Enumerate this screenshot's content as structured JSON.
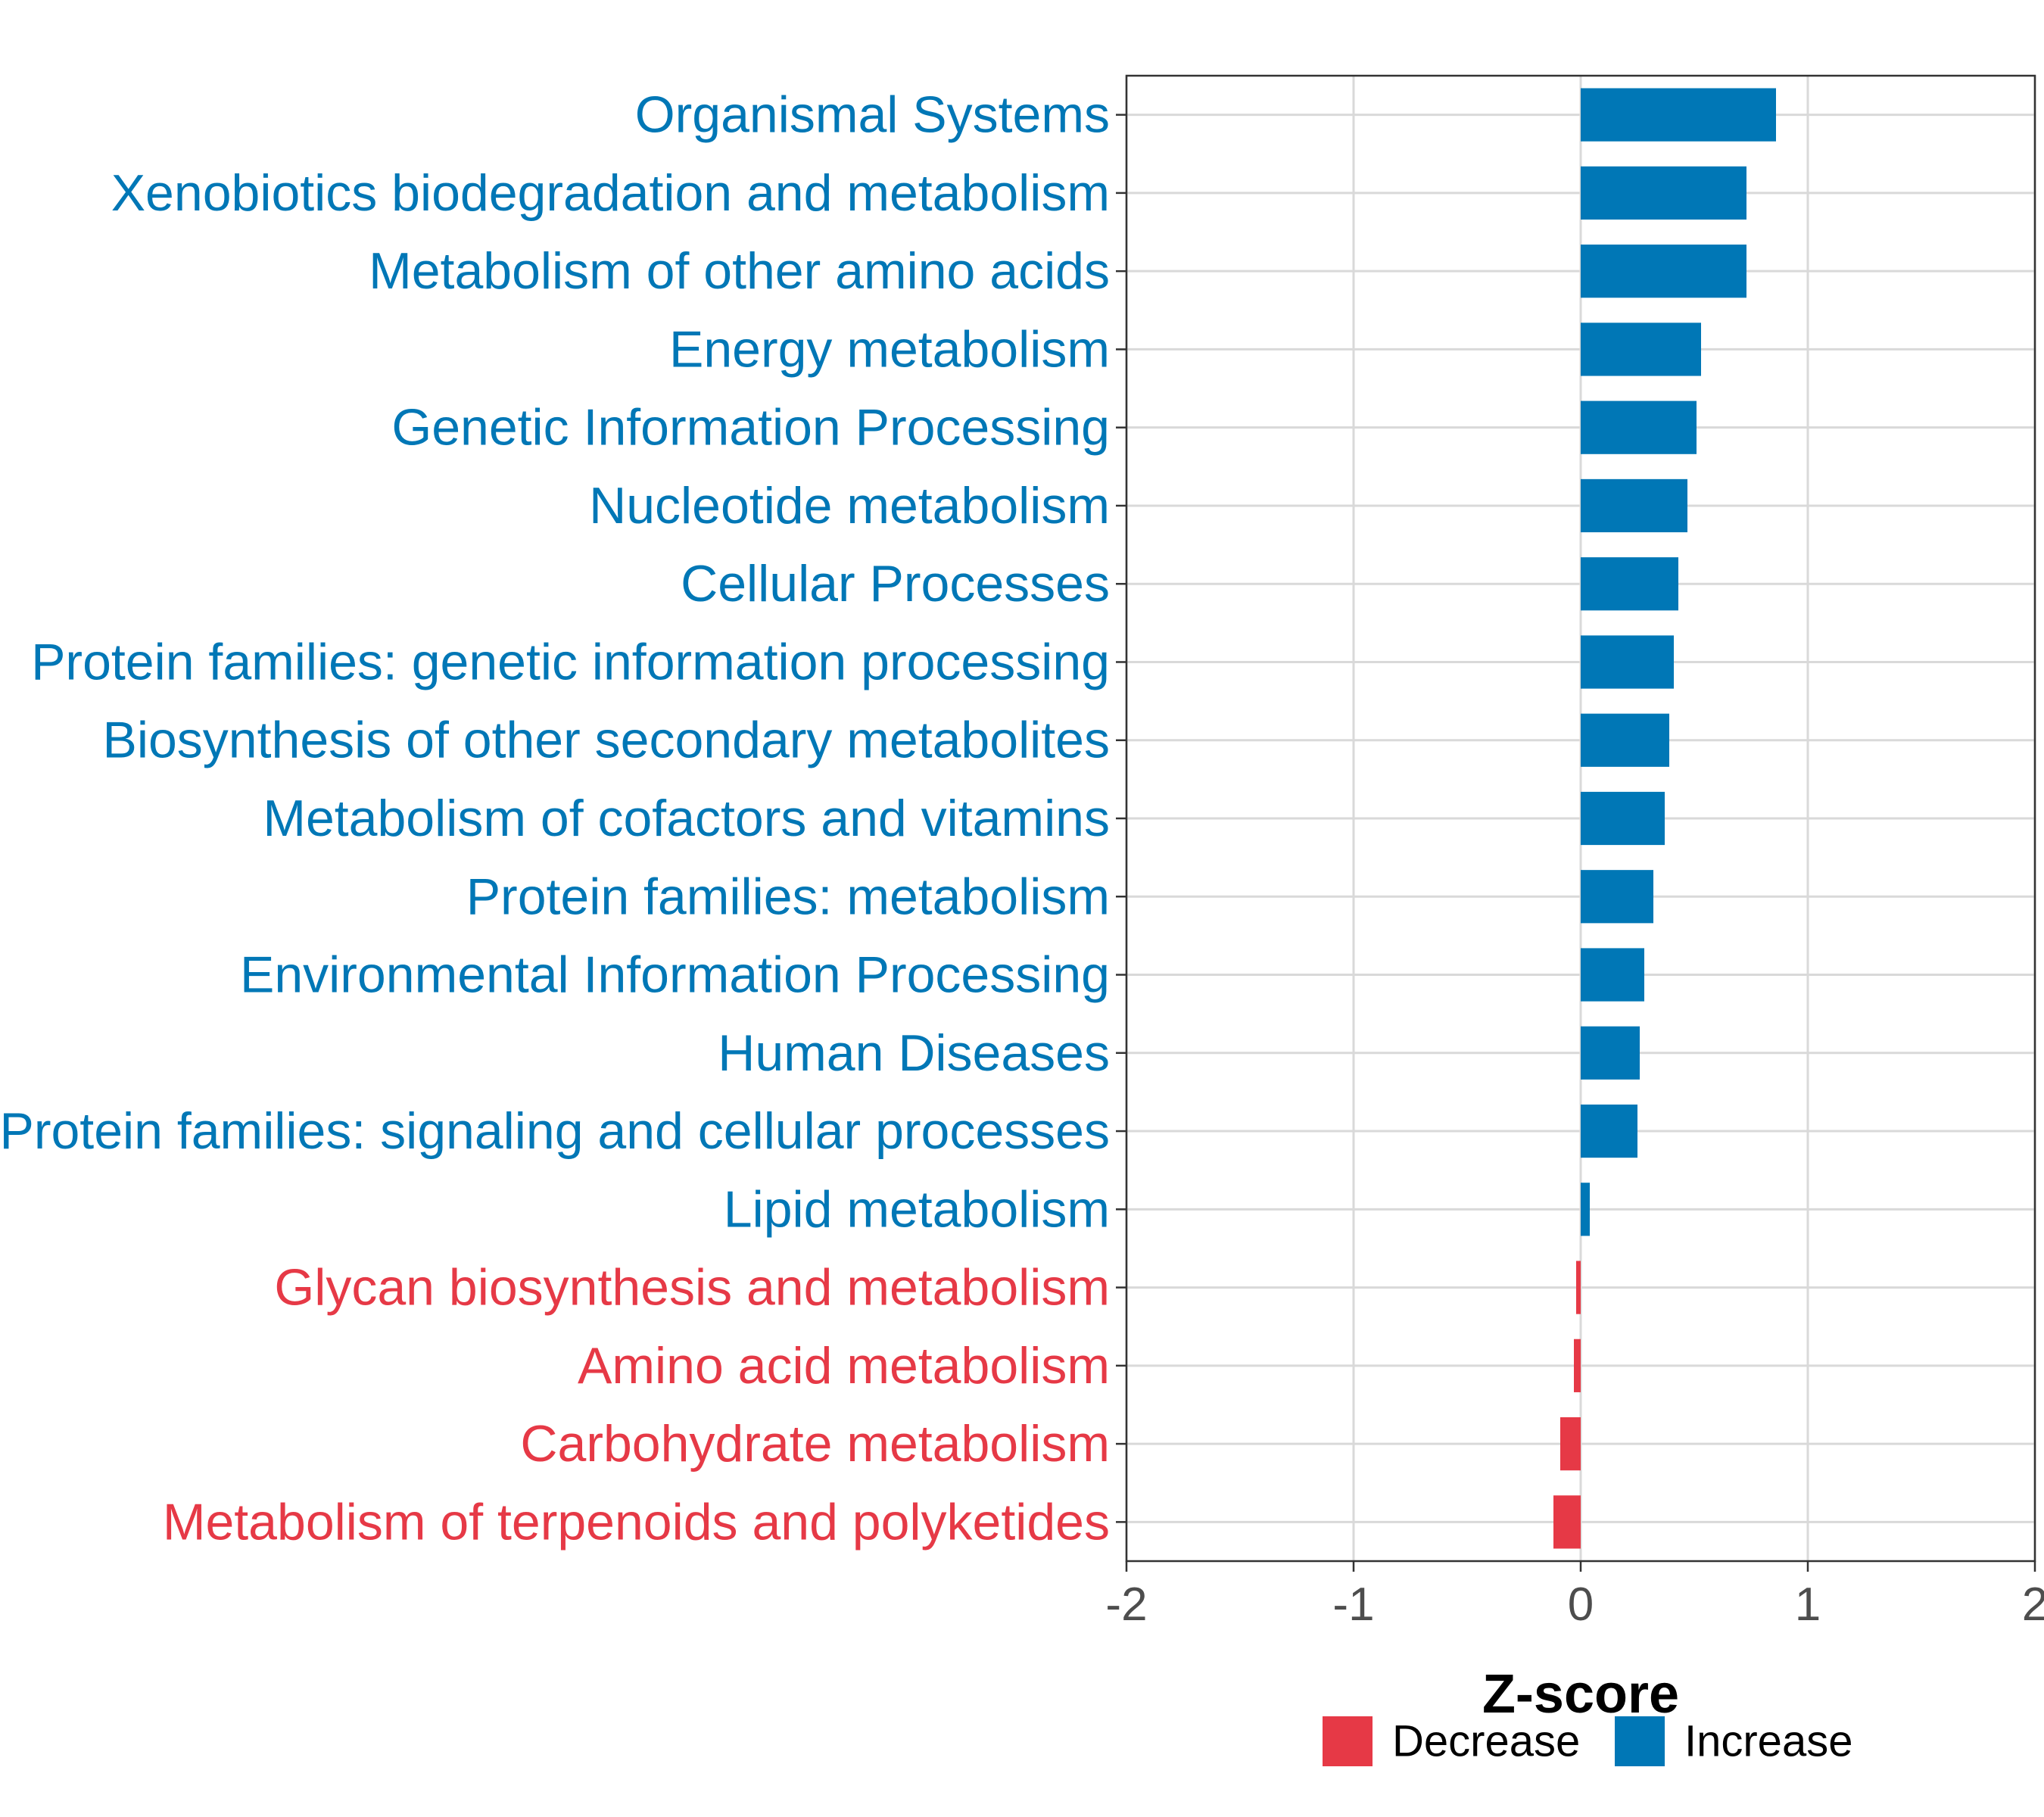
{
  "chart_data": {
    "type": "bar",
    "orientation": "horizontal",
    "title": "",
    "xlabel": "Z-score",
    "ylabel": "",
    "xlim": [
      -2,
      2
    ],
    "xticks": [
      -2,
      -1,
      0,
      1,
      2
    ],
    "xtick_labels": [
      "-2",
      "-1",
      "0",
      "1",
      "2"
    ],
    "grid": true,
    "legend_position": "bottom",
    "colors": {
      "Increase": "#0077b6",
      "Decrease": "#e63946"
    },
    "legend": [
      {
        "name": "Decrease",
        "color": "#e63946"
      },
      {
        "name": "Increase",
        "color": "#0077b6"
      }
    ],
    "bars": [
      {
        "label": "Organismal Systems",
        "value": 0.86,
        "group": "Increase"
      },
      {
        "label": "Xenobiotics biodegradation and metabolism",
        "value": 0.73,
        "group": "Increase"
      },
      {
        "label": "Metabolism of other amino acids",
        "value": 0.73,
        "group": "Increase"
      },
      {
        "label": "Energy metabolism",
        "value": 0.53,
        "group": "Increase"
      },
      {
        "label": "Genetic Information Processing",
        "value": 0.51,
        "group": "Increase"
      },
      {
        "label": "Nucleotide metabolism",
        "value": 0.47,
        "group": "Increase"
      },
      {
        "label": "Cellular Processes",
        "value": 0.43,
        "group": "Increase"
      },
      {
        "label": "Protein families: genetic information processing",
        "value": 0.41,
        "group": "Increase"
      },
      {
        "label": "Biosynthesis of other secondary metabolites",
        "value": 0.39,
        "group": "Increase"
      },
      {
        "label": "Metabolism of cofactors and vitamins",
        "value": 0.37,
        "group": "Increase"
      },
      {
        "label": "Protein families: metabolism",
        "value": 0.32,
        "group": "Increase"
      },
      {
        "label": "Environmental Information Processing",
        "value": 0.28,
        "group": "Increase"
      },
      {
        "label": "Human Diseases",
        "value": 0.26,
        "group": "Increase"
      },
      {
        "label": "Protein families: signaling and cellular processes",
        "value": 0.25,
        "group": "Increase"
      },
      {
        "label": "Lipid metabolism",
        "value": 0.04,
        "group": "Increase"
      },
      {
        "label": "Glycan biosynthesis and metabolism",
        "value": -0.02,
        "group": "Decrease"
      },
      {
        "label": "Amino acid metabolism",
        "value": -0.03,
        "group": "Decrease"
      },
      {
        "label": "Carbohydrate metabolism",
        "value": -0.09,
        "group": "Decrease"
      },
      {
        "label": "Metabolism of terpenoids and polyketides",
        "value": -0.12,
        "group": "Decrease"
      }
    ]
  }
}
